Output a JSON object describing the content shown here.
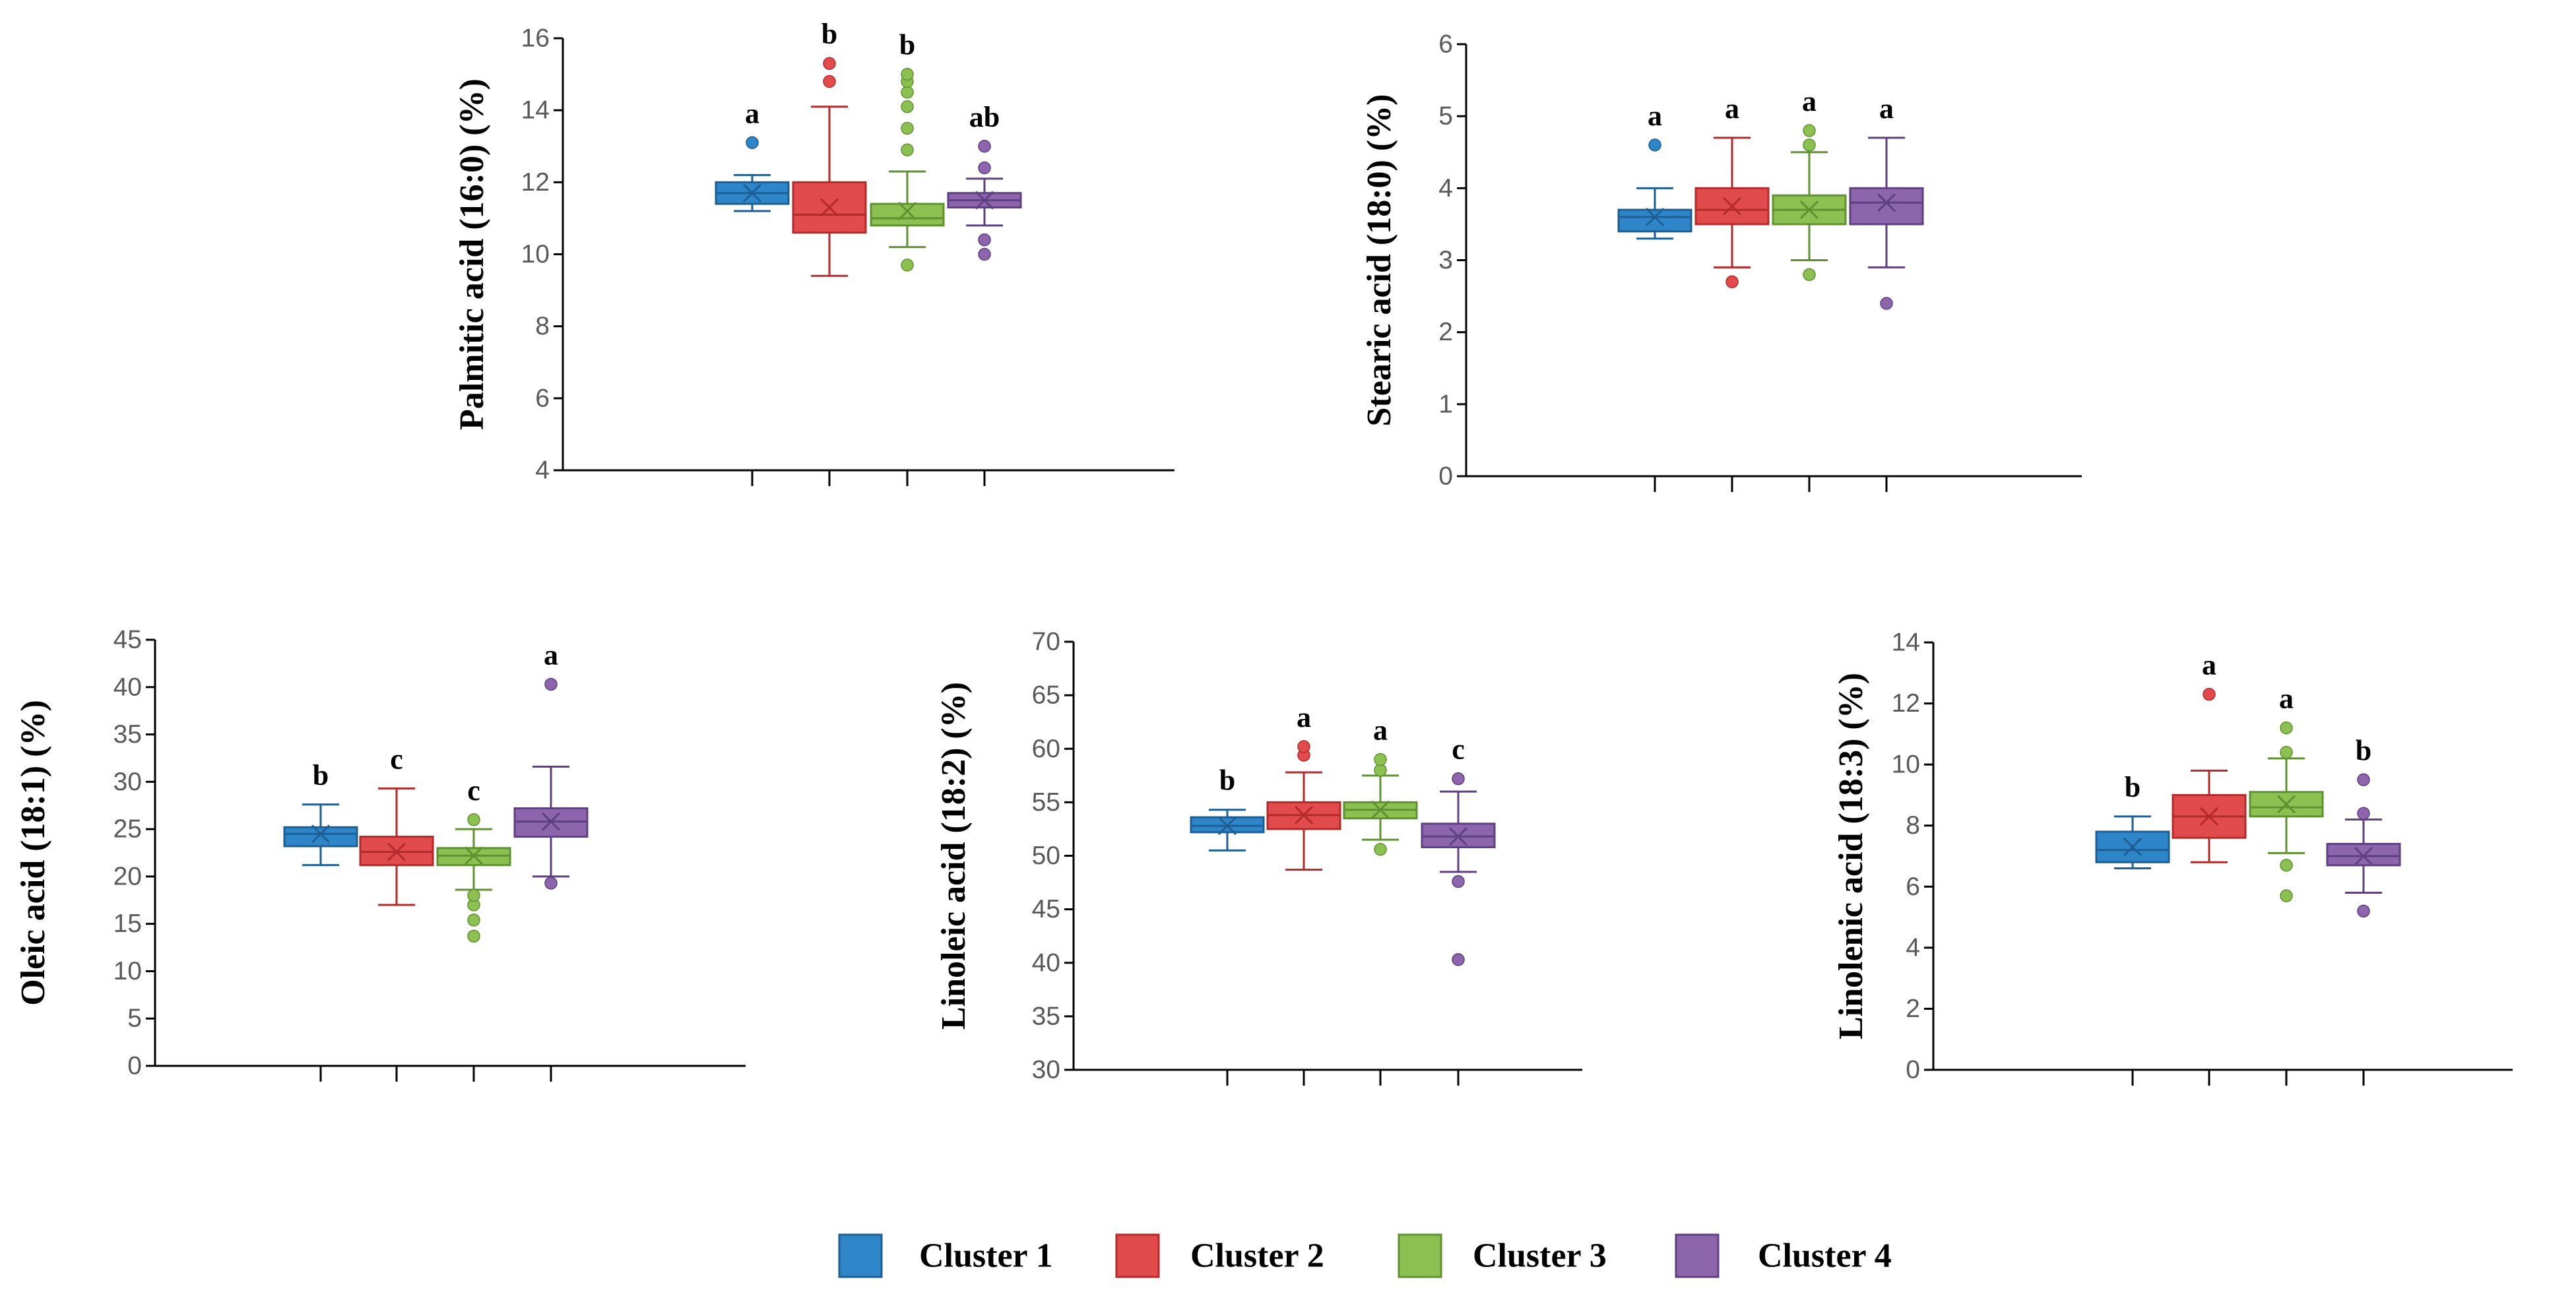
{
  "colors": {
    "cluster1": {
      "fill": "#2e86c8",
      "stroke": "#1d5f94"
    },
    "cluster2": {
      "fill": "#e24b4b",
      "stroke": "#b32a2a"
    },
    "cluster3": {
      "fill": "#8cc152",
      "stroke": "#5f9130"
    },
    "cluster4": {
      "fill": "#8c65ad",
      "stroke": "#5e3f80"
    }
  },
  "legend": [
    "Cluster 1",
    "Cluster 2",
    "Cluster 3",
    "Cluster 4"
  ],
  "chart_data": [
    {
      "type": "box",
      "id": "palmitic",
      "ylabel": "Palmitic acid (16:0) (%)",
      "ylim": [
        4,
        16
      ],
      "yticks": [
        4,
        6,
        8,
        10,
        12,
        14,
        16
      ],
      "xlabel": "",
      "grid": false,
      "series": [
        {
          "name": "Cluster 1",
          "min": 11.2,
          "q1": 11.4,
          "median": 11.7,
          "mean": 11.7,
          "q3": 12.0,
          "max": 12.2,
          "outliers": [
            13.1
          ],
          "letter": "a"
        },
        {
          "name": "Cluster 2",
          "min": 9.4,
          "q1": 10.6,
          "median": 11.1,
          "mean": 11.3,
          "q3": 12.0,
          "max": 14.1,
          "outliers": [
            14.8,
            15.3
          ],
          "letter": "b"
        },
        {
          "name": "Cluster 3",
          "min": 10.2,
          "q1": 10.8,
          "median": 11.0,
          "mean": 11.2,
          "q3": 11.4,
          "max": 12.3,
          "outliers": [
            9.7,
            12.9,
            13.5,
            14.1,
            14.5,
            14.8,
            15.0
          ],
          "letter": "b"
        },
        {
          "name": "Cluster 4",
          "min": 10.8,
          "q1": 11.3,
          "median": 11.5,
          "mean": 11.5,
          "q3": 11.7,
          "max": 12.1,
          "outliers": [
            10.0,
            10.4,
            12.4,
            13.0
          ],
          "letter": "ab"
        }
      ]
    },
    {
      "type": "box",
      "id": "stearic",
      "ylabel": "Stearic acid (18:0) (%)",
      "ylim": [
        0,
        6
      ],
      "yticks": [
        0,
        1,
        2,
        3,
        4,
        5,
        6
      ],
      "xlabel": "",
      "grid": false,
      "series": [
        {
          "name": "Cluster 1",
          "min": 3.3,
          "q1": 3.4,
          "median": 3.6,
          "mean": 3.6,
          "q3": 3.7,
          "max": 4.0,
          "outliers": [
            4.6
          ],
          "letter": "a"
        },
        {
          "name": "Cluster 2",
          "min": 2.9,
          "q1": 3.5,
          "median": 3.7,
          "mean": 3.75,
          "q3": 4.0,
          "max": 4.7,
          "outliers": [
            2.7
          ],
          "letter": "a"
        },
        {
          "name": "Cluster 3",
          "min": 3.0,
          "q1": 3.5,
          "median": 3.7,
          "mean": 3.7,
          "q3": 3.9,
          "max": 4.5,
          "outliers": [
            2.8,
            4.6,
            4.8
          ],
          "letter": "a"
        },
        {
          "name": "Cluster 4",
          "min": 2.9,
          "q1": 3.5,
          "median": 3.8,
          "mean": 3.8,
          "q3": 4.0,
          "max": 4.7,
          "outliers": [
            2.4
          ],
          "letter": "a"
        }
      ]
    },
    {
      "type": "box",
      "id": "oleic",
      "ylabel": "Oleic acid (18:1) (%)",
      "ylim": [
        0,
        45
      ],
      "yticks": [
        0,
        5,
        10,
        15,
        20,
        25,
        30,
        35,
        40,
        45
      ],
      "xlabel": "",
      "grid": false,
      "series": [
        {
          "name": "Cluster 1",
          "min": 21.2,
          "q1": 23.2,
          "median": 24.5,
          "mean": 24.5,
          "q3": 25.2,
          "max": 27.6,
          "outliers": [],
          "letter": "b"
        },
        {
          "name": "Cluster 2",
          "min": 17.0,
          "q1": 21.2,
          "median": 22.6,
          "mean": 22.6,
          "q3": 24.2,
          "max": 29.3,
          "outliers": [],
          "letter": "c"
        },
        {
          "name": "Cluster 3",
          "min": 18.6,
          "q1": 21.2,
          "median": 22.2,
          "mean": 22.2,
          "q3": 23.0,
          "max": 25.0,
          "outliers": [
            13.7,
            15.4,
            17.0,
            18.0,
            26.0
          ],
          "letter": "c"
        },
        {
          "name": "Cluster 4",
          "min": 20.0,
          "q1": 24.2,
          "median": 25.8,
          "mean": 25.8,
          "q3": 27.2,
          "max": 31.6,
          "outliers": [
            19.3,
            40.3
          ],
          "letter": "a"
        }
      ]
    },
    {
      "type": "box",
      "id": "linoleic",
      "ylabel": "Linoleic acid (18:2) (%)",
      "ylim": [
        30,
        70
      ],
      "yticks": [
        30,
        35,
        40,
        45,
        50,
        55,
        60,
        65,
        70
      ],
      "xlabel": "",
      "grid": false,
      "series": [
        {
          "name": "Cluster 1",
          "min": 50.5,
          "q1": 52.2,
          "median": 52.8,
          "mean": 52.8,
          "q3": 53.6,
          "max": 54.3,
          "outliers": [],
          "letter": "b"
        },
        {
          "name": "Cluster 2",
          "min": 48.7,
          "q1": 52.5,
          "median": 53.8,
          "mean": 53.8,
          "q3": 55.0,
          "max": 57.8,
          "outliers": [
            59.4,
            60.2
          ],
          "letter": "a"
        },
        {
          "name": "Cluster 3",
          "min": 51.5,
          "q1": 53.5,
          "median": 54.3,
          "mean": 54.3,
          "q3": 55.0,
          "max": 57.5,
          "outliers": [
            50.6,
            58.0,
            59.0
          ],
          "letter": "a"
        },
        {
          "name": "Cluster 4",
          "min": 48.5,
          "q1": 50.8,
          "median": 51.8,
          "mean": 51.8,
          "q3": 53.0,
          "max": 56.0,
          "outliers": [
            40.3,
            47.6,
            57.2
          ],
          "letter": "c"
        }
      ]
    },
    {
      "type": "box",
      "id": "linolenic",
      "ylabel": "Linolenic acid (18:3) (%)",
      "ylim": [
        0,
        14
      ],
      "yticks": [
        0,
        2,
        4,
        6,
        8,
        10,
        12,
        14
      ],
      "xlabel": "",
      "grid": false,
      "series": [
        {
          "name": "Cluster 1",
          "min": 6.6,
          "q1": 6.8,
          "median": 7.2,
          "mean": 7.3,
          "q3": 7.8,
          "max": 8.3,
          "outliers": [],
          "letter": "b"
        },
        {
          "name": "Cluster 2",
          "min": 6.8,
          "q1": 7.6,
          "median": 8.3,
          "mean": 8.3,
          "q3": 9.0,
          "max": 9.8,
          "outliers": [
            12.3
          ],
          "letter": "a"
        },
        {
          "name": "Cluster 3",
          "min": 7.1,
          "q1": 8.3,
          "median": 8.6,
          "mean": 8.7,
          "q3": 9.1,
          "max": 10.2,
          "outliers": [
            5.7,
            6.7,
            10.4,
            11.2
          ],
          "letter": "a"
        },
        {
          "name": "Cluster 4",
          "min": 5.8,
          "q1": 6.7,
          "median": 7.0,
          "mean": 7.0,
          "q3": 7.4,
          "max": 8.2,
          "outliers": [
            5.2,
            8.4,
            9.5
          ],
          "letter": "b"
        }
      ]
    }
  ]
}
